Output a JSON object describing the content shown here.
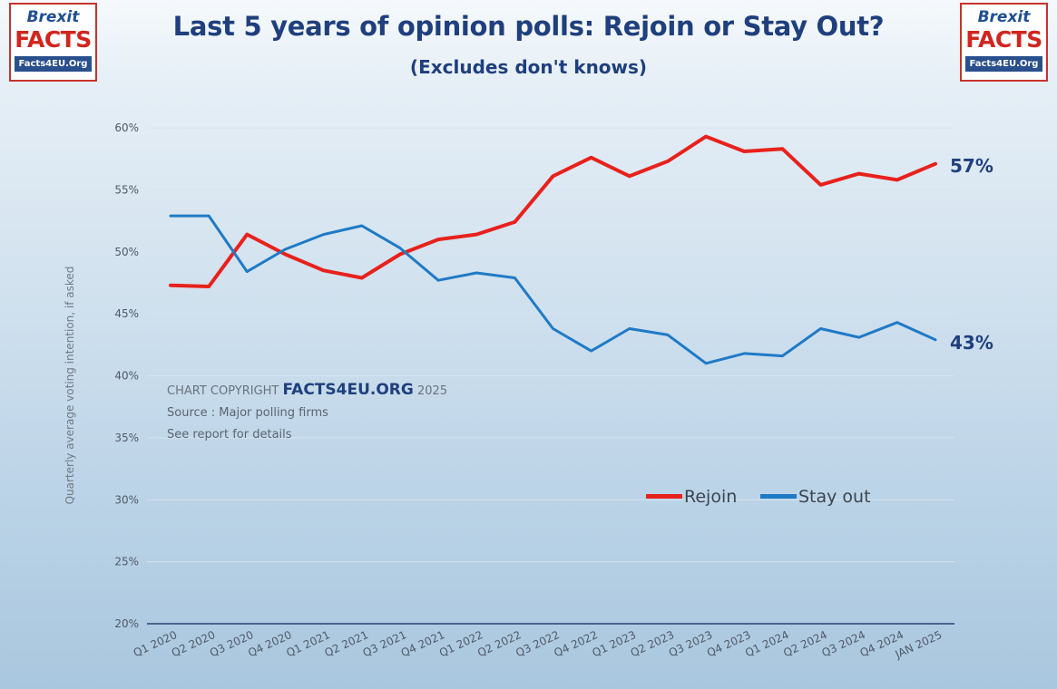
{
  "logo": {
    "brexit": "Brexit",
    "facts": "FACTS",
    "site": "Facts4EU.Org"
  },
  "header": {
    "title": "Last 5 years of opinion polls: Rejoin or Stay Out?",
    "subtitle": "(Excludes don't knows)"
  },
  "copyright": {
    "prefix": "CHART COPYRIGHT",
    "site": "FACTS4EU.ORG",
    "year": "2025",
    "source": "Source : Major polling firms",
    "note": "See report for details"
  },
  "legend": {
    "rejoin": "Rejoin",
    "stay_out": "Stay out"
  },
  "end_labels": {
    "rejoin": "57%",
    "stay_out": "43%"
  },
  "chart_data": {
    "type": "line",
    "title": "Last 5 years of opinion polls: Rejoin or Stay Out?",
    "subtitle": "(Excludes don't knows)",
    "xlabel": "",
    "ylabel": "Quarterly average voting intention, if asked",
    "ylim": [
      20,
      60
    ],
    "yticks": [
      "20%",
      "25%",
      "30%",
      "35%",
      "40%",
      "45%",
      "50%",
      "55%",
      "60%"
    ],
    "categories": [
      "Q1 2020",
      "Q2 2020",
      "Q3 2020",
      "Q4 2020",
      "Q1 2021",
      "Q2 2021",
      "Q3 2021",
      "Q4 2021",
      "Q1 2022",
      "Q2 2022",
      "Q3 2022",
      "Q4 2022",
      "Q1 2023",
      "Q2 2023",
      "Q3 2023",
      "Q4 2023",
      "Q1 2024",
      "Q2 2024",
      "Q3 2024",
      "Q4 2024",
      "JAN 2025"
    ],
    "series": [
      {
        "name": "Rejoin",
        "color": "#e8211c",
        "values": [
          47.3,
          47.2,
          51.4,
          49.8,
          48.5,
          47.9,
          49.8,
          51.0,
          51.4,
          52.4,
          56.1,
          57.6,
          56.1,
          57.3,
          59.3,
          58.1,
          58.3,
          55.4,
          56.3,
          55.8,
          57.1
        ]
      },
      {
        "name": "Stay out",
        "color": "#1f7ac6",
        "values": [
          52.9,
          52.9,
          48.4,
          50.2,
          51.4,
          52.1,
          50.3,
          47.7,
          48.3,
          47.9,
          43.8,
          42.0,
          43.8,
          43.3,
          41.0,
          41.8,
          41.6,
          43.8,
          43.1,
          44.3,
          42.9
        ]
      }
    ],
    "grid": true,
    "legend_position": "bottom-right"
  }
}
